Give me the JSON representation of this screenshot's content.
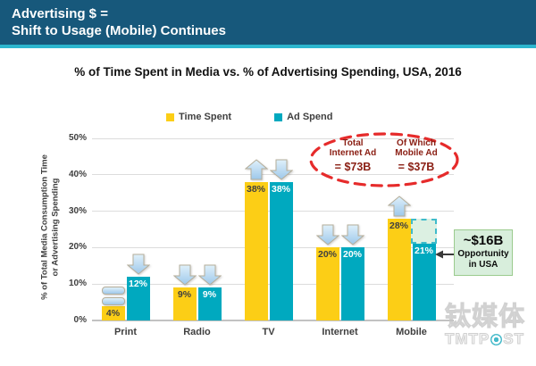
{
  "header": {
    "line1": "Advertising $ =",
    "line2": "Shift to Usage (Mobile) Continues"
  },
  "chart_data": {
    "type": "bar",
    "title": "% of Time Spent in Media vs. % of Advertising Spending, USA, 2016",
    "ylabel_line1": "% of Total Media Consumption Time",
    "ylabel_line2": "or Advertising Spending",
    "ylim": [
      0,
      50
    ],
    "yticks": {
      "values": [
        0,
        10,
        20,
        30,
        40,
        50
      ],
      "labels": [
        "0%",
        "10%",
        "20%",
        "30%",
        "40%",
        "50%"
      ]
    },
    "grid": "horizontal",
    "legend_position": "top-center",
    "categories": [
      "Print",
      "Radio",
      "TV",
      "Internet",
      "Mobile"
    ],
    "series": [
      {
        "name": "Time Spent",
        "values": [
          4,
          9,
          38,
          20,
          28
        ],
        "labels": [
          "4%",
          "9%",
          "38%",
          "20%",
          "28%"
        ],
        "trends": [
          "flat",
          "down",
          "up",
          "down",
          "up"
        ]
      },
      {
        "name": "Ad Spend",
        "values": [
          12,
          9,
          38,
          20,
          21
        ],
        "labels": [
          "12%",
          "9%",
          "38%",
          "20%",
          "21%"
        ],
        "trends": [
          "down",
          "down",
          "down",
          "down",
          "up"
        ]
      }
    ],
    "legend": [
      {
        "name": "Time Spent",
        "color": "#FCCE16"
      },
      {
        "name": "Ad Spend",
        "color": "#00A9BF"
      }
    ]
  },
  "annotation_ellipse": {
    "col1": {
      "line1": "Total",
      "line2": "Internet Ad",
      "amount": "= $73B"
    },
    "col2": {
      "line1": "Of Which",
      "line2": "Mobile Ad",
      "amount": "= $37B"
    }
  },
  "opportunity_gap": {
    "category": "Mobile",
    "from_percent": 21,
    "to_percent": 28
  },
  "callout": {
    "amount": "~$16B",
    "line1": "Opportunity",
    "line2": "in USA"
  },
  "watermark": {
    "cjk": "钛媒体",
    "latin_prefix": "TMTP",
    "latin_suffix": "ST",
    "full_latin": "TMTPOST"
  },
  "colors": {
    "header_bg": "#17587B",
    "header_underline": "#2CB6CE",
    "bar_yellow": "#FCCE16",
    "bar_teal": "#00A9BF",
    "value_on_yellow": "#404040",
    "value_on_teal": "#FFFFFF",
    "arrow_light": "#DFF0FA",
    "arrow_dark": "#9EC8EA",
    "arrow_border": "#B5AE9A",
    "ellipse_red": "#E62B2B",
    "ellipse_text": "#8B2015",
    "gap_fill": "#DCF0E2",
    "gap_border": "#3FBBCB",
    "callout_bg": "#D8EEDC",
    "callout_border": "#9BCB8E",
    "watermark_teal": "#19AABD"
  }
}
